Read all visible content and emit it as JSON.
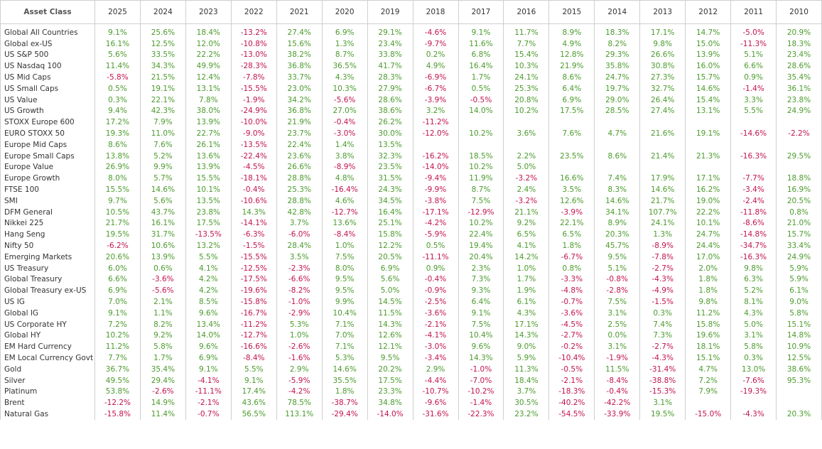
{
  "table": {
    "header": [
      "Asset Class",
      "2025",
      "2024",
      "2023",
      "2022",
      "2021",
      "2020",
      "2019",
      "2018",
      "2017",
      "2016",
      "2015",
      "2014",
      "2013",
      "2012",
      "2011",
      "2010"
    ],
    "rows": [
      {
        "label": "Global All Countries",
        "cells": [
          "9.1%",
          "25.6%",
          "18.4%",
          "-13.2%",
          "27.4%",
          "6.9%",
          "29.1%",
          "-4.6%",
          "9.1%",
          "11.7%",
          "8.9%",
          "18.3%",
          "17.1%",
          "14.7%",
          "-5.0%",
          "20.9%"
        ]
      },
      {
        "label": "Global ex-US",
        "cells": [
          "16.1%",
          "12.5%",
          "12.0%",
          "-10.8%",
          "15.6%",
          "1.3%",
          "23.4%",
          "-9.7%",
          "11.6%",
          "7.7%",
          "4.9%",
          "8.2%",
          "9.8%",
          "15.0%",
          "-11.3%",
          "18.3%"
        ]
      },
      {
        "label": "US S&P 500",
        "cells": [
          "5.6%",
          "33.5%",
          "22.2%",
          "-13.0%",
          "38.2%",
          "8.7%",
          "33.8%",
          "0.2%",
          "6.8%",
          "15.4%",
          "12.8%",
          "29.3%",
          "26.6%",
          "13.9%",
          "5.1%",
          "23.4%"
        ]
      },
      {
        "label": "US Nasdaq 100",
        "cells": [
          "11.4%",
          "34.3%",
          "49.9%",
          "-28.3%",
          "36.8%",
          "36.5%",
          "41.7%",
          "4.9%",
          "16.4%",
          "10.3%",
          "21.9%",
          "35.8%",
          "30.8%",
          "16.0%",
          "6.6%",
          "28.6%"
        ]
      },
      {
        "label": "US Mid Caps",
        "cells": [
          "-5.8%",
          "21.5%",
          "12.4%",
          "-7.8%",
          "33.7%",
          "4.3%",
          "28.3%",
          "-6.9%",
          "1.7%",
          "24.1%",
          "8.6%",
          "24.7%",
          "27.3%",
          "15.7%",
          "0.9%",
          "35.4%"
        ]
      },
      {
        "label": "US Small Caps",
        "cells": [
          "0.5%",
          "19.1%",
          "13.1%",
          "-15.5%",
          "23.0%",
          "10.3%",
          "27.9%",
          "-6.7%",
          "0.5%",
          "25.3%",
          "6.4%",
          "19.7%",
          "32.7%",
          "14.6%",
          "-1.4%",
          "36.1%"
        ]
      },
      {
        "label": "US Value",
        "cells": [
          "0.3%",
          "22.1%",
          "7.8%",
          "-1.9%",
          "34.2%",
          "-5.6%",
          "28.6%",
          "-3.9%",
          "-0.5%",
          "20.8%",
          "6.9%",
          "29.0%",
          "26.4%",
          "15.4%",
          "3.3%",
          "23.8%"
        ]
      },
      {
        "label": "US Growth",
        "cells": [
          "9.4%",
          "42.3%",
          "38.0%",
          "-24.9%",
          "36.8%",
          "27.0%",
          "38.6%",
          "3.2%",
          "14.0%",
          "10.2%",
          "17.5%",
          "28.5%",
          "27.4%",
          "13.1%",
          "5.5%",
          "24.9%"
        ]
      },
      {
        "label": "STOXX Europe 600",
        "cells": [
          "17.2%",
          "7.9%",
          "13.9%",
          "-10.0%",
          "21.9%",
          "-0.4%",
          "26.2%",
          "-11.2%",
          null,
          null,
          null,
          null,
          null,
          null,
          null,
          null
        ]
      },
      {
        "label": "EURO STOXX 50",
        "cells": [
          "19.3%",
          "11.0%",
          "22.7%",
          "-9.0%",
          "23.7%",
          "-3.0%",
          "30.0%",
          "-12.0%",
          "10.2%",
          "3.6%",
          "7.6%",
          "4.7%",
          "21.6%",
          "19.1%",
          "-14.6%",
          "-2.2%"
        ]
      },
      {
        "label": "Europe Mid Caps",
        "cells": [
          "8.6%",
          "7.6%",
          "26.1%",
          "-13.5%",
          "22.4%",
          "1.4%",
          "13.5%",
          null,
          null,
          null,
          null,
          null,
          null,
          null,
          null,
          null
        ]
      },
      {
        "label": "Europe Small Caps",
        "cells": [
          "13.8%",
          "5.2%",
          "13.6%",
          "-22.4%",
          "23.6%",
          "3.8%",
          "32.3%",
          "-16.2%",
          "18.5%",
          "2.2%",
          "23.5%",
          "8.6%",
          "21.4%",
          "21.3%",
          "-16.3%",
          "29.5%"
        ]
      },
      {
        "label": "Europe Value",
        "cells": [
          "26.9%",
          "9.9%",
          "13.9%",
          "-4.5%",
          "26.6%",
          "-8.9%",
          "23.5%",
          "-14.0%",
          "10.2%",
          "5.0%",
          null,
          null,
          null,
          null,
          null,
          null
        ]
      },
      {
        "label": "Europe Growth",
        "cells": [
          "8.0%",
          "5.7%",
          "15.5%",
          "-18.1%",
          "28.8%",
          "4.8%",
          "31.5%",
          "-9.4%",
          "11.9%",
          "-3.2%",
          "16.6%",
          "7.4%",
          "17.9%",
          "17.1%",
          "-7.7%",
          "18.8%"
        ]
      },
      {
        "label": "FTSE 100",
        "cells": [
          "15.5%",
          "14.6%",
          "10.1%",
          "-0.4%",
          "25.3%",
          "-16.4%",
          "24.3%",
          "-9.9%",
          "8.7%",
          "2.4%",
          "3.5%",
          "8.3%",
          "14.6%",
          "16.2%",
          "-3.4%",
          "16.9%"
        ]
      },
      {
        "label": "SMI",
        "cells": [
          "9.7%",
          "5.6%",
          "13.5%",
          "-10.6%",
          "28.8%",
          "4.6%",
          "34.5%",
          "-3.8%",
          "7.5%",
          "-3.2%",
          "12.6%",
          "14.6%",
          "21.7%",
          "19.0%",
          "-2.4%",
          "20.5%"
        ]
      },
      {
        "label": "DFM General",
        "cells": [
          "10.5%",
          "43.7%",
          "23.8%",
          "14.3%",
          "42.8%",
          "-12.7%",
          "16.4%",
          "-17.1%",
          "-12.9%",
          "21.1%",
          "-3.9%",
          "34.1%",
          "107.7%",
          "22.2%",
          "-11.8%",
          "0.8%"
        ]
      },
      {
        "label": "Nikkei 225",
        "cells": [
          "21.7%",
          "16.1%",
          "17.5%",
          "-14.1%",
          "3.7%",
          "13.6%",
          "25.1%",
          "-4.2%",
          "10.2%",
          "9.2%",
          "22.1%",
          "8.9%",
          "24.1%",
          "10.1%",
          "-8.6%",
          "21.0%"
        ]
      },
      {
        "label": "Hang Seng",
        "cells": [
          "19.5%",
          "31.7%",
          "-13.5%",
          "-6.3%",
          "-6.0%",
          "-8.4%",
          "15.8%",
          "-5.9%",
          "22.4%",
          "6.5%",
          "6.5%",
          "20.3%",
          "1.3%",
          "24.7%",
          "-14.8%",
          "15.7%"
        ]
      },
      {
        "label": "Nifty 50",
        "cells": [
          "-6.2%",
          "10.6%",
          "13.2%",
          "-1.5%",
          "28.4%",
          "1.0%",
          "12.2%",
          "0.5%",
          "19.4%",
          "4.1%",
          "1.8%",
          "45.7%",
          "-8.9%",
          "24.4%",
          "-34.7%",
          "33.4%"
        ]
      },
      {
        "label": "Emerging Markets",
        "cells": [
          "20.6%",
          "13.9%",
          "5.5%",
          "-15.5%",
          "3.5%",
          "7.5%",
          "20.5%",
          "-11.1%",
          "20.4%",
          "14.2%",
          "-6.7%",
          "9.5%",
          "-7.8%",
          "17.0%",
          "-16.3%",
          "24.9%"
        ]
      },
      {
        "label": "US Treasury",
        "cells": [
          "6.0%",
          "0.6%",
          "4.1%",
          "-12.5%",
          "-2.3%",
          "8.0%",
          "6.9%",
          "0.9%",
          "2.3%",
          "1.0%",
          "0.8%",
          "5.1%",
          "-2.7%",
          "2.0%",
          "9.8%",
          "5.9%"
        ]
      },
      {
        "label": "Global Treasury",
        "cells": [
          "6.6%",
          "-3.6%",
          "4.2%",
          "-17.5%",
          "-6.6%",
          "9.5%",
          "5.6%",
          "-0.4%",
          "7.3%",
          "1.7%",
          "-3.3%",
          "-0.8%",
          "-4.3%",
          "1.8%",
          "6.3%",
          "5.9%"
        ]
      },
      {
        "label": "Global Treasury ex-US",
        "cells": [
          "6.9%",
          "-5.6%",
          "4.2%",
          "-19.6%",
          "-8.2%",
          "9.5%",
          "5.0%",
          "-0.9%",
          "9.3%",
          "1.9%",
          "-4.8%",
          "-2.8%",
          "-4.9%",
          "1.8%",
          "5.2%",
          "6.1%"
        ]
      },
      {
        "label": "US IG",
        "cells": [
          "7.0%",
          "2.1%",
          "8.5%",
          "-15.8%",
          "-1.0%",
          "9.9%",
          "14.5%",
          "-2.5%",
          "6.4%",
          "6.1%",
          "-0.7%",
          "7.5%",
          "-1.5%",
          "9.8%",
          "8.1%",
          "9.0%"
        ]
      },
      {
        "label": "Global IG",
        "cells": [
          "9.1%",
          "1.1%",
          "9.6%",
          "-16.7%",
          "-2.9%",
          "10.4%",
          "11.5%",
          "-3.6%",
          "9.1%",
          "4.3%",
          "-3.6%",
          "3.1%",
          "0.3%",
          "11.2%",
          "4.3%",
          "5.8%"
        ]
      },
      {
        "label": "US Corporate HY",
        "cells": [
          "7.2%",
          "8.2%",
          "13.4%",
          "-11.2%",
          "5.3%",
          "7.1%",
          "14.3%",
          "-2.1%",
          "7.5%",
          "17.1%",
          "-4.5%",
          "2.5%",
          "7.4%",
          "15.8%",
          "5.0%",
          "15.1%"
        ]
      },
      {
        "label": "Global HY",
        "cells": [
          "10.2%",
          "9.2%",
          "14.0%",
          "-12.7%",
          "1.0%",
          "7.0%",
          "12.6%",
          "-4.1%",
          "10.4%",
          "14.3%",
          "-2.7%",
          "0.0%",
          "7.3%",
          "19.6%",
          "3.1%",
          "14.8%"
        ]
      },
      {
        "label": "EM Hard Currency",
        "cells": [
          "11.2%",
          "5.8%",
          "9.6%",
          "-16.6%",
          "-2.6%",
          "7.1%",
          "12.1%",
          "-3.0%",
          "9.6%",
          "9.0%",
          "-0.2%",
          "3.1%",
          "-2.7%",
          "18.1%",
          "5.8%",
          "10.9%"
        ]
      },
      {
        "label": "EM Local Currency Govt",
        "cells": [
          "7.7%",
          "1.7%",
          "6.9%",
          "-8.4%",
          "-1.6%",
          "5.3%",
          "9.5%",
          "-3.4%",
          "14.3%",
          "5.9%",
          "-10.4%",
          "-1.9%",
          "-4.3%",
          "15.1%",
          "0.3%",
          "12.5%"
        ]
      },
      {
        "label": "Gold",
        "cells": [
          "36.7%",
          "35.4%",
          "9.1%",
          "5.5%",
          "2.9%",
          "14.6%",
          "20.2%",
          "2.9%",
          "-1.0%",
          "11.3%",
          "-0.5%",
          "11.5%",
          "-31.4%",
          "4.7%",
          "13.0%",
          "38.6%"
        ]
      },
      {
        "label": "Silver",
        "cells": [
          "49.5%",
          "29.4%",
          "-4.1%",
          "9.1%",
          "-5.9%",
          "35.5%",
          "17.5%",
          "-4.4%",
          "-7.0%",
          "18.4%",
          "-2.1%",
          "-8.4%",
          "-38.8%",
          "7.2%",
          "-7.6%",
          "95.3%"
        ]
      },
      {
        "label": "Platinum",
        "cells": [
          "53.8%",
          "-2.6%",
          "-11.1%",
          "17.4%",
          "-4.2%",
          "1.8%",
          "23.3%",
          "-10.7%",
          "-10.2%",
          "3.7%",
          "-18.3%",
          "-0.4%",
          "-15.3%",
          "7.9%",
          "-19.3%",
          null
        ]
      },
      {
        "label": "Brent",
        "cells": [
          "-12.2%",
          "14.9%",
          "-2.1%",
          "43.6%",
          "78.5%",
          "-38.7%",
          "34.8%",
          "-9.6%",
          "-1.4%",
          "30.5%",
          "-40.2%",
          "-42.2%",
          "3.1%",
          null,
          null,
          null
        ]
      },
      {
        "label": "Natural Gas",
        "cells": [
          "-15.8%",
          "11.4%",
          "-0.7%",
          "56.5%",
          "113.1%",
          "-29.4%",
          "-14.0%",
          "-31.6%",
          "-22.3%",
          "23.2%",
          "-54.5%",
          "-33.9%",
          "19.5%",
          "-15.0%",
          "-4.3%",
          "20.3%"
        ]
      }
    ]
  }
}
